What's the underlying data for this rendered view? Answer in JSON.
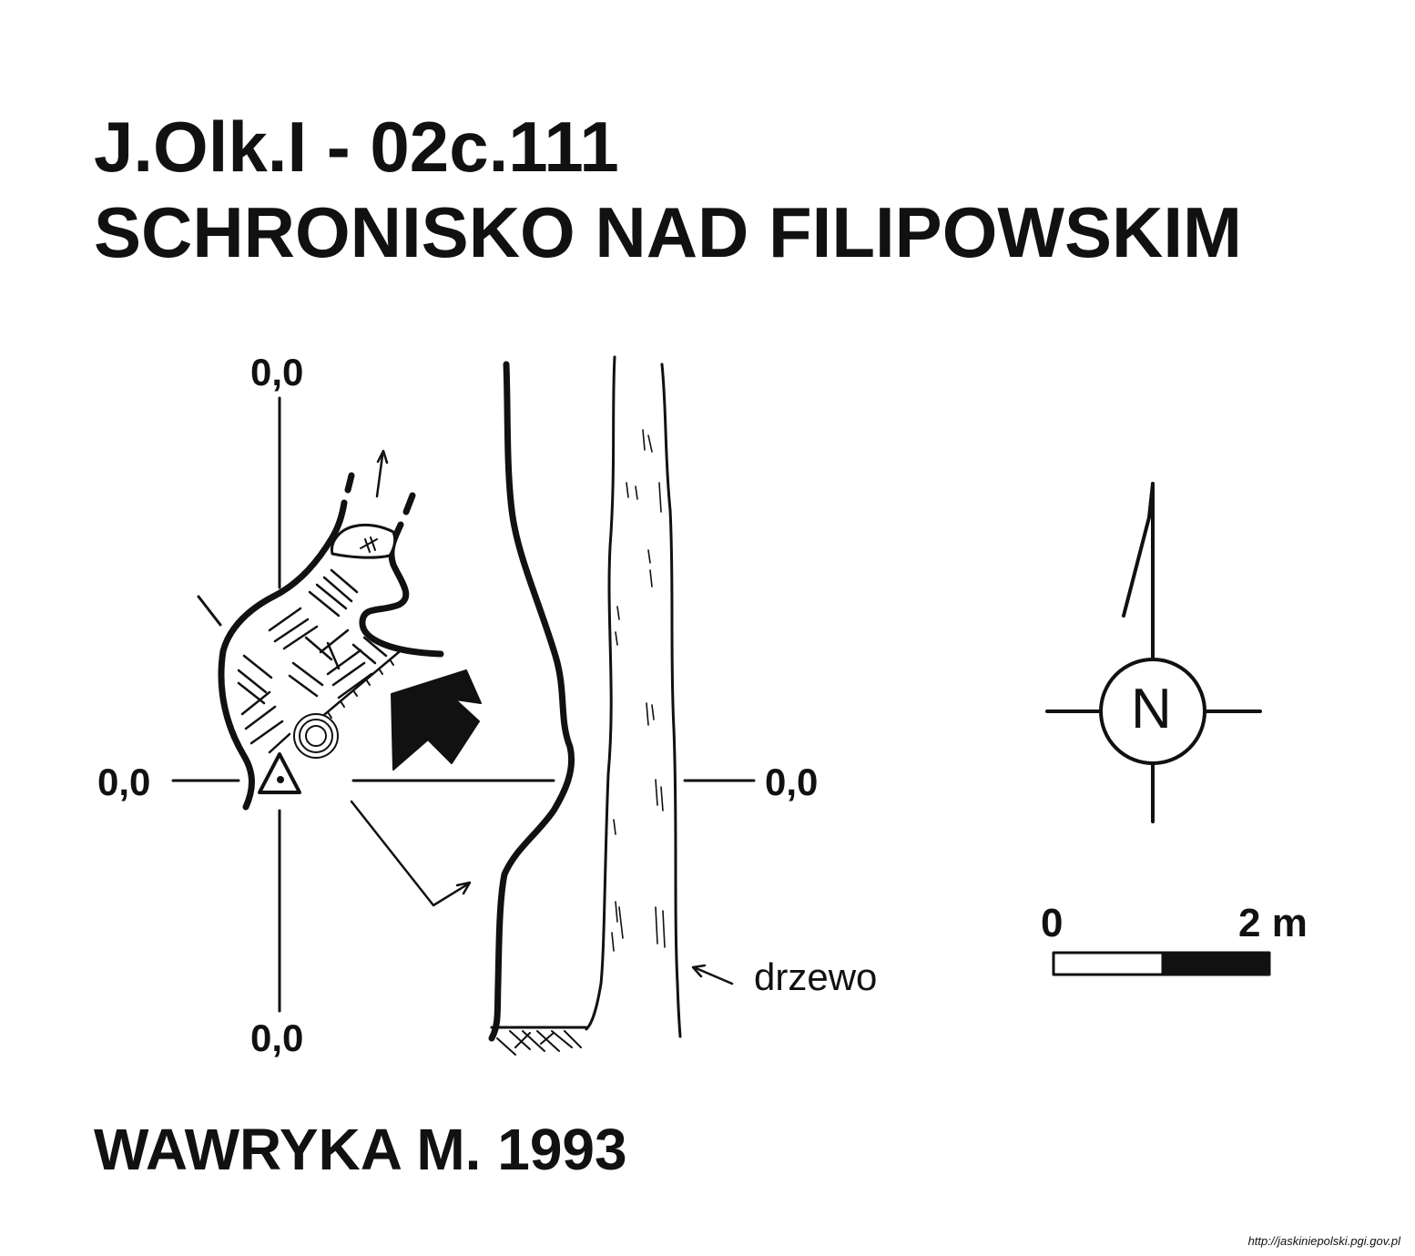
{
  "header": {
    "code": "J.Olk.I - 02c.111",
    "name": "SCHRONISKO NAD FILIPOWSKIM"
  },
  "coordinates": {
    "top": "0,0",
    "left": "0,0",
    "right": "0,0",
    "bottom": "0,0"
  },
  "compass": {
    "north_label": "N"
  },
  "scale": {
    "start_label": "0",
    "end_label": "2 m"
  },
  "annotations": {
    "tree": "drzewo"
  },
  "footer": {
    "author": "WAWRYKA M. 1993",
    "url": "http://jaskiniepolski.pgi.gov.pl"
  },
  "colors": {
    "ink": "#111111",
    "paper": "#ffffff"
  }
}
